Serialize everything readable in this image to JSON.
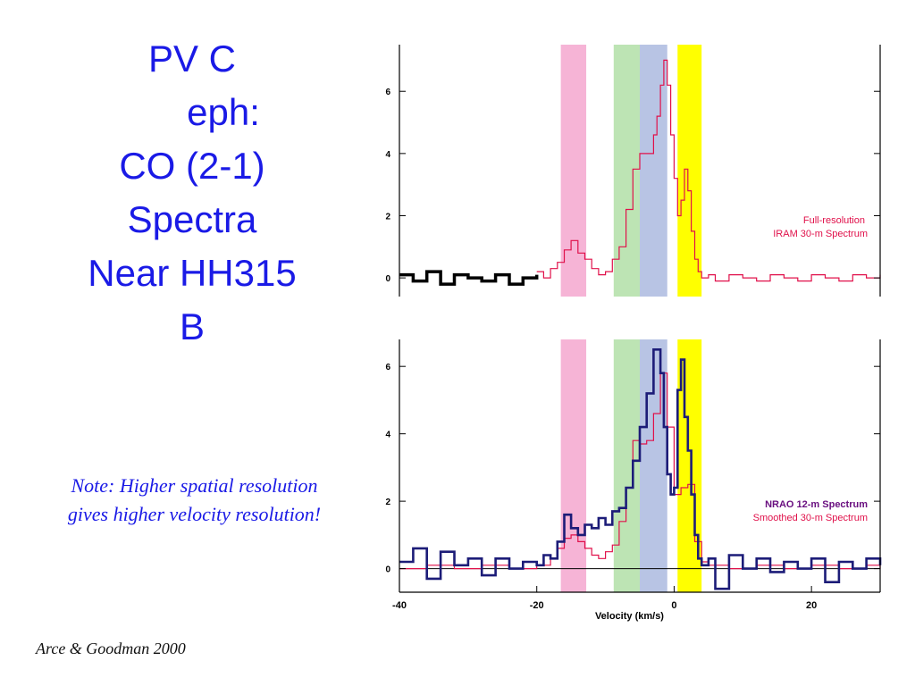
{
  "slide": {
    "title_lines": [
      "PV C",
      "      eph:",
      "CO (2-1)",
      "Spectra",
      "Near HH315",
      "B"
    ],
    "note_lines": [
      "Note: Higher spatial resolution",
      "gives higher velocity resolution!"
    ],
    "credit": "Arce & Goodman 2000"
  },
  "colors": {
    "title": "#1a1ae6",
    "iram_full": "#e0104a",
    "iram_low": "#000000",
    "nrao": "#1c1c78",
    "smoothed": "#e0104a",
    "nrao_label": "#6a1080",
    "band_pink": "#f6b4d6",
    "band_green": "#bde4b4",
    "band_blue": "#b8c4e4",
    "band_yellow": "#ffff00"
  },
  "chart_data": [
    {
      "type": "line",
      "panel": "top",
      "xlabel": "",
      "ylabel": "",
      "xlim": [
        -40,
        30
      ],
      "ylim": [
        -0.6,
        7.5
      ],
      "yticks": [
        0,
        2,
        4,
        6
      ],
      "ytick_labels": [
        "0",
        "2",
        "4",
        "6"
      ],
      "legend": [
        "Full-resolution",
        "IRAM 30-m Spectrum"
      ],
      "bands": [
        {
          "x0": -16.5,
          "x1": -12.8,
          "color": "pink"
        },
        {
          "x0": -8.8,
          "x1": -5.0,
          "color": "green"
        },
        {
          "x0": -5.0,
          "x1": -1.0,
          "color": "blue"
        },
        {
          "x0": 0.5,
          "x1": 4.0,
          "color": "yellow"
        }
      ],
      "series": [
        {
          "x": [
            -40,
            -38,
            -36,
            -34,
            -32,
            -30,
            -28,
            -26,
            -24,
            -22,
            -20
          ],
          "y": [
            0.1,
            -0.1,
            0.2,
            -0.2,
            0.1,
            0.0,
            -0.1,
            0.1,
            -0.2,
            0.0,
            0.1
          ]
        },
        {
          "x": [
            -20,
            -19,
            -18,
            -17,
            -16,
            -15,
            -14,
            -13,
            -12,
            -11,
            -10,
            -9,
            -8,
            -7,
            -6,
            -5,
            -4,
            -3,
            -2.5,
            -2,
            -1.5,
            -1,
            -0.5,
            0,
            0.5,
            1,
            1.5,
            2,
            2.5,
            3,
            3.5,
            4,
            5,
            6,
            8,
            10,
            12,
            14,
            16,
            18,
            20,
            22,
            24,
            26,
            28,
            30
          ],
          "y": [
            0.2,
            0.0,
            0.3,
            0.5,
            0.9,
            1.2,
            0.8,
            0.6,
            0.3,
            0.1,
            0.2,
            0.6,
            1.0,
            2.2,
            3.5,
            4.0,
            4.0,
            4.6,
            5.2,
            6.2,
            7.0,
            6.2,
            4.6,
            3.2,
            2.0,
            2.5,
            3.5,
            2.8,
            1.5,
            0.6,
            0.2,
            0.0,
            0.1,
            -0.1,
            0.1,
            0.0,
            -0.1,
            0.1,
            0.0,
            -0.1,
            0.1,
            0.0,
            -0.1,
            0.1,
            0.0,
            0.1
          ]
        }
      ]
    },
    {
      "type": "line",
      "panel": "bottom",
      "xlabel": "Velocity (km/s)",
      "ylabel": "",
      "xlim": [
        -40,
        30
      ],
      "ylim": [
        -0.7,
        6.8
      ],
      "xticks": [
        -40,
        -20,
        0,
        20
      ],
      "xtick_labels": [
        "-40",
        "-20",
        "0",
        "20"
      ],
      "yticks": [
        0,
        2,
        4,
        6
      ],
      "ytick_labels": [
        "0",
        "2",
        "4",
        "6"
      ],
      "legend": [
        "NRAO 12-m Spectrum",
        "Smoothed 30-m Spectrum"
      ],
      "bands": [
        {
          "x0": -16.5,
          "x1": -12.8,
          "color": "pink"
        },
        {
          "x0": -8.8,
          "x1": -5.0,
          "color": "green"
        },
        {
          "x0": -5.0,
          "x1": -1.0,
          "color": "blue"
        },
        {
          "x0": 0.5,
          "x1": 4.0,
          "color": "yellow"
        }
      ],
      "series": [
        {
          "name": "NRAO 12-m Spectrum",
          "x": [
            -40,
            -38,
            -36,
            -34,
            -32,
            -30,
            -28,
            -26,
            -24,
            -22,
            -20,
            -19,
            -18,
            -17,
            -16,
            -15,
            -14,
            -13,
            -12,
            -11,
            -10,
            -9,
            -8,
            -7,
            -6,
            -5,
            -4,
            -3,
            -2,
            -1.5,
            -1,
            -0.5,
            0,
            0.5,
            1,
            1.5,
            2,
            2.5,
            3,
            3.5,
            4,
            5,
            6,
            8,
            10,
            12,
            14,
            16,
            18,
            20,
            22,
            24,
            26,
            28,
            30
          ],
          "y": [
            0.2,
            0.6,
            -0.3,
            0.5,
            0.1,
            0.3,
            -0.2,
            0.3,
            0.0,
            0.2,
            0.1,
            0.4,
            0.3,
            0.8,
            1.6,
            1.2,
            1.0,
            1.3,
            1.2,
            1.5,
            1.3,
            1.7,
            1.8,
            2.4,
            3.2,
            4.2,
            5.2,
            6.5,
            5.8,
            4.2,
            2.8,
            2.2,
            2.4,
            5.3,
            6.2,
            4.5,
            3.5,
            2.2,
            1.0,
            0.3,
            0.1,
            0.3,
            -0.6,
            0.4,
            0.0,
            0.3,
            -0.1,
            0.2,
            0.0,
            0.3,
            -0.4,
            0.2,
            0.0,
            0.3,
            0.1
          ]
        },
        {
          "name": "Smoothed 30-m Spectrum",
          "x": [
            -40,
            -36,
            -32,
            -28,
            -24,
            -20,
            -18,
            -17,
            -16,
            -15,
            -14,
            -13,
            -12,
            -11,
            -10,
            -9,
            -8,
            -7,
            -6,
            -5,
            -4,
            -3,
            -2,
            -1,
            0,
            1,
            2,
            3,
            4,
            5,
            8,
            12,
            16,
            20,
            24,
            28,
            30
          ],
          "y": [
            0.0,
            0.1,
            0.0,
            0.1,
            0.0,
            0.1,
            0.3,
            0.6,
            0.9,
            1.0,
            0.8,
            0.6,
            0.4,
            0.3,
            0.5,
            0.7,
            1.4,
            2.4,
            3.8,
            3.7,
            3.8,
            4.6,
            5.8,
            4.2,
            2.2,
            2.4,
            2.5,
            0.8,
            0.2,
            0.1,
            0.0,
            0.1,
            0.0,
            0.1,
            0.0,
            0.1,
            0.0
          ]
        }
      ]
    }
  ]
}
